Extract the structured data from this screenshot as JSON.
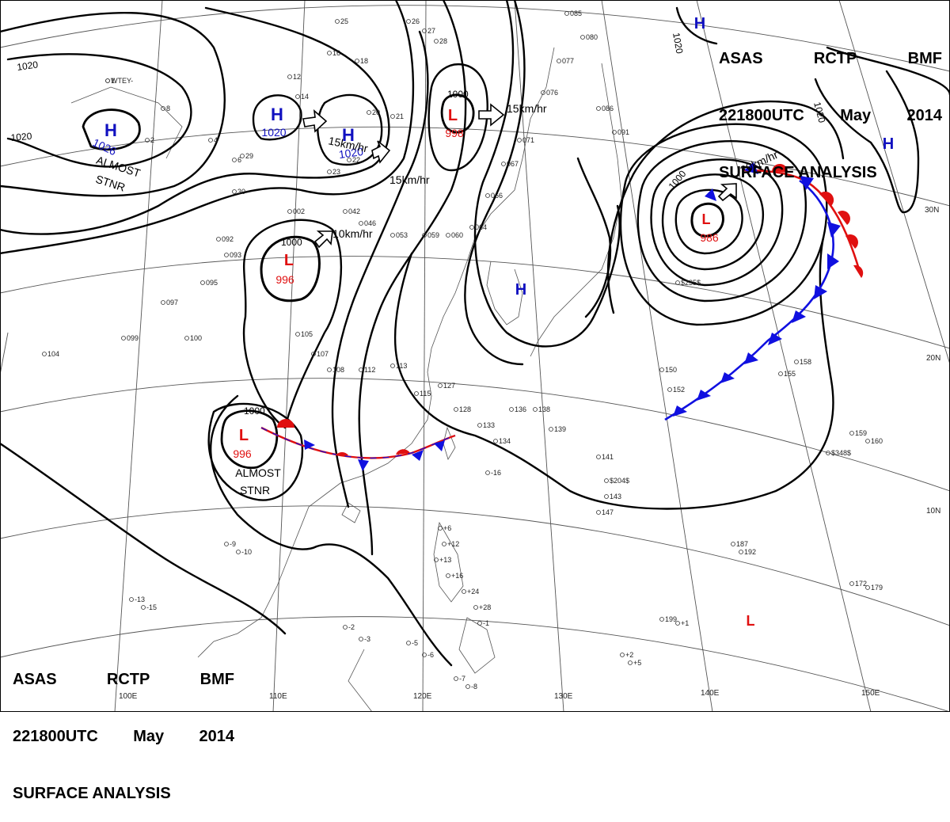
{
  "header": {
    "agency": "ASAS",
    "station": "RCTP",
    "office": "BMF",
    "datetime": "221800UTC",
    "month": "May",
    "year": "2014",
    "product": "SURFACE ANALYSIS"
  },
  "lon_labels": [
    "100E",
    "110E",
    "120E",
    "130E",
    "140E",
    "150E"
  ],
  "lat_labels": [
    "30N",
    "20N",
    "10N"
  ],
  "isobar_labels": [
    "1020",
    "1020",
    "1020",
    "1020",
    "1000",
    "1000",
    "1000",
    "1000"
  ],
  "pressure_centers": [
    {
      "type": "H",
      "value": "1026",
      "color": "#1010c0"
    },
    {
      "type": "H",
      "value": "1020",
      "color": "#1010c0"
    },
    {
      "type": "H",
      "value": "1020",
      "color": "#1010c0"
    },
    {
      "type": "L",
      "value": "998",
      "color": "#e01010"
    },
    {
      "type": "L",
      "value": "996",
      "color": "#e01010"
    },
    {
      "type": "L",
      "value": "986",
      "color": "#e01010"
    },
    {
      "type": "L",
      "value": "996",
      "color": "#e01010"
    },
    {
      "type": "H",
      "value": "",
      "color": "#1010c0"
    },
    {
      "type": "H",
      "value": "",
      "color": "#1010c0"
    },
    {
      "type": "H",
      "value": "",
      "color": "#1010c0"
    },
    {
      "type": "L",
      "value": "",
      "color": "#e01010"
    }
  ],
  "motion_labels": [
    "15km/hr",
    "15km/hr",
    "15km/hr",
    "10km/hr",
    "20km/hr"
  ],
  "stationary_labels": [
    {
      "line1": "ALMOST",
      "line2": "STNR"
    },
    {
      "line1": "ALMOST",
      "line2": "STNR"
    }
  ],
  "station_obs": [
    "1",
    "2",
    "4",
    "6",
    "8",
    "12",
    "14",
    "16",
    "18",
    "20",
    "21",
    "22",
    "23",
    "25",
    "26",
    "27",
    "28",
    "29",
    "30",
    "002",
    "042",
    "046",
    "053",
    "059",
    "060",
    "064",
    "066",
    "067",
    "071",
    "076",
    "077",
    "080",
    "085",
    "086",
    "091",
    "092",
    "093",
    "095",
    "097",
    "099",
    "100",
    "104",
    "105",
    "107",
    "108",
    "112",
    "113",
    "115",
    "127",
    "128",
    "133",
    "134",
    "136",
    "138",
    "139",
    "141",
    "143",
    "147",
    "150",
    "152",
    "155",
    "158",
    "159",
    "160",
    "172",
    "179",
    "187",
    "192",
    "199",
    "+1",
    "+2",
    "+5",
    "+6",
    "+12",
    "+13",
    "+16",
    "+24",
    "+28",
    "-1",
    "-2",
    "-3",
    "-5",
    "-6",
    "-7",
    "-8",
    "-9",
    "-10",
    "-13",
    "-15",
    "-16",
    "$204$",
    "$235$",
    "$348$",
    "WTEY-"
  ],
  "colors": {
    "isobar": "#000000",
    "high": "#1010c0",
    "low": "#e01010",
    "cold_front": "#1010e0",
    "warm_front": "#e01010",
    "grid": "#444444",
    "coast": "#333333"
  }
}
